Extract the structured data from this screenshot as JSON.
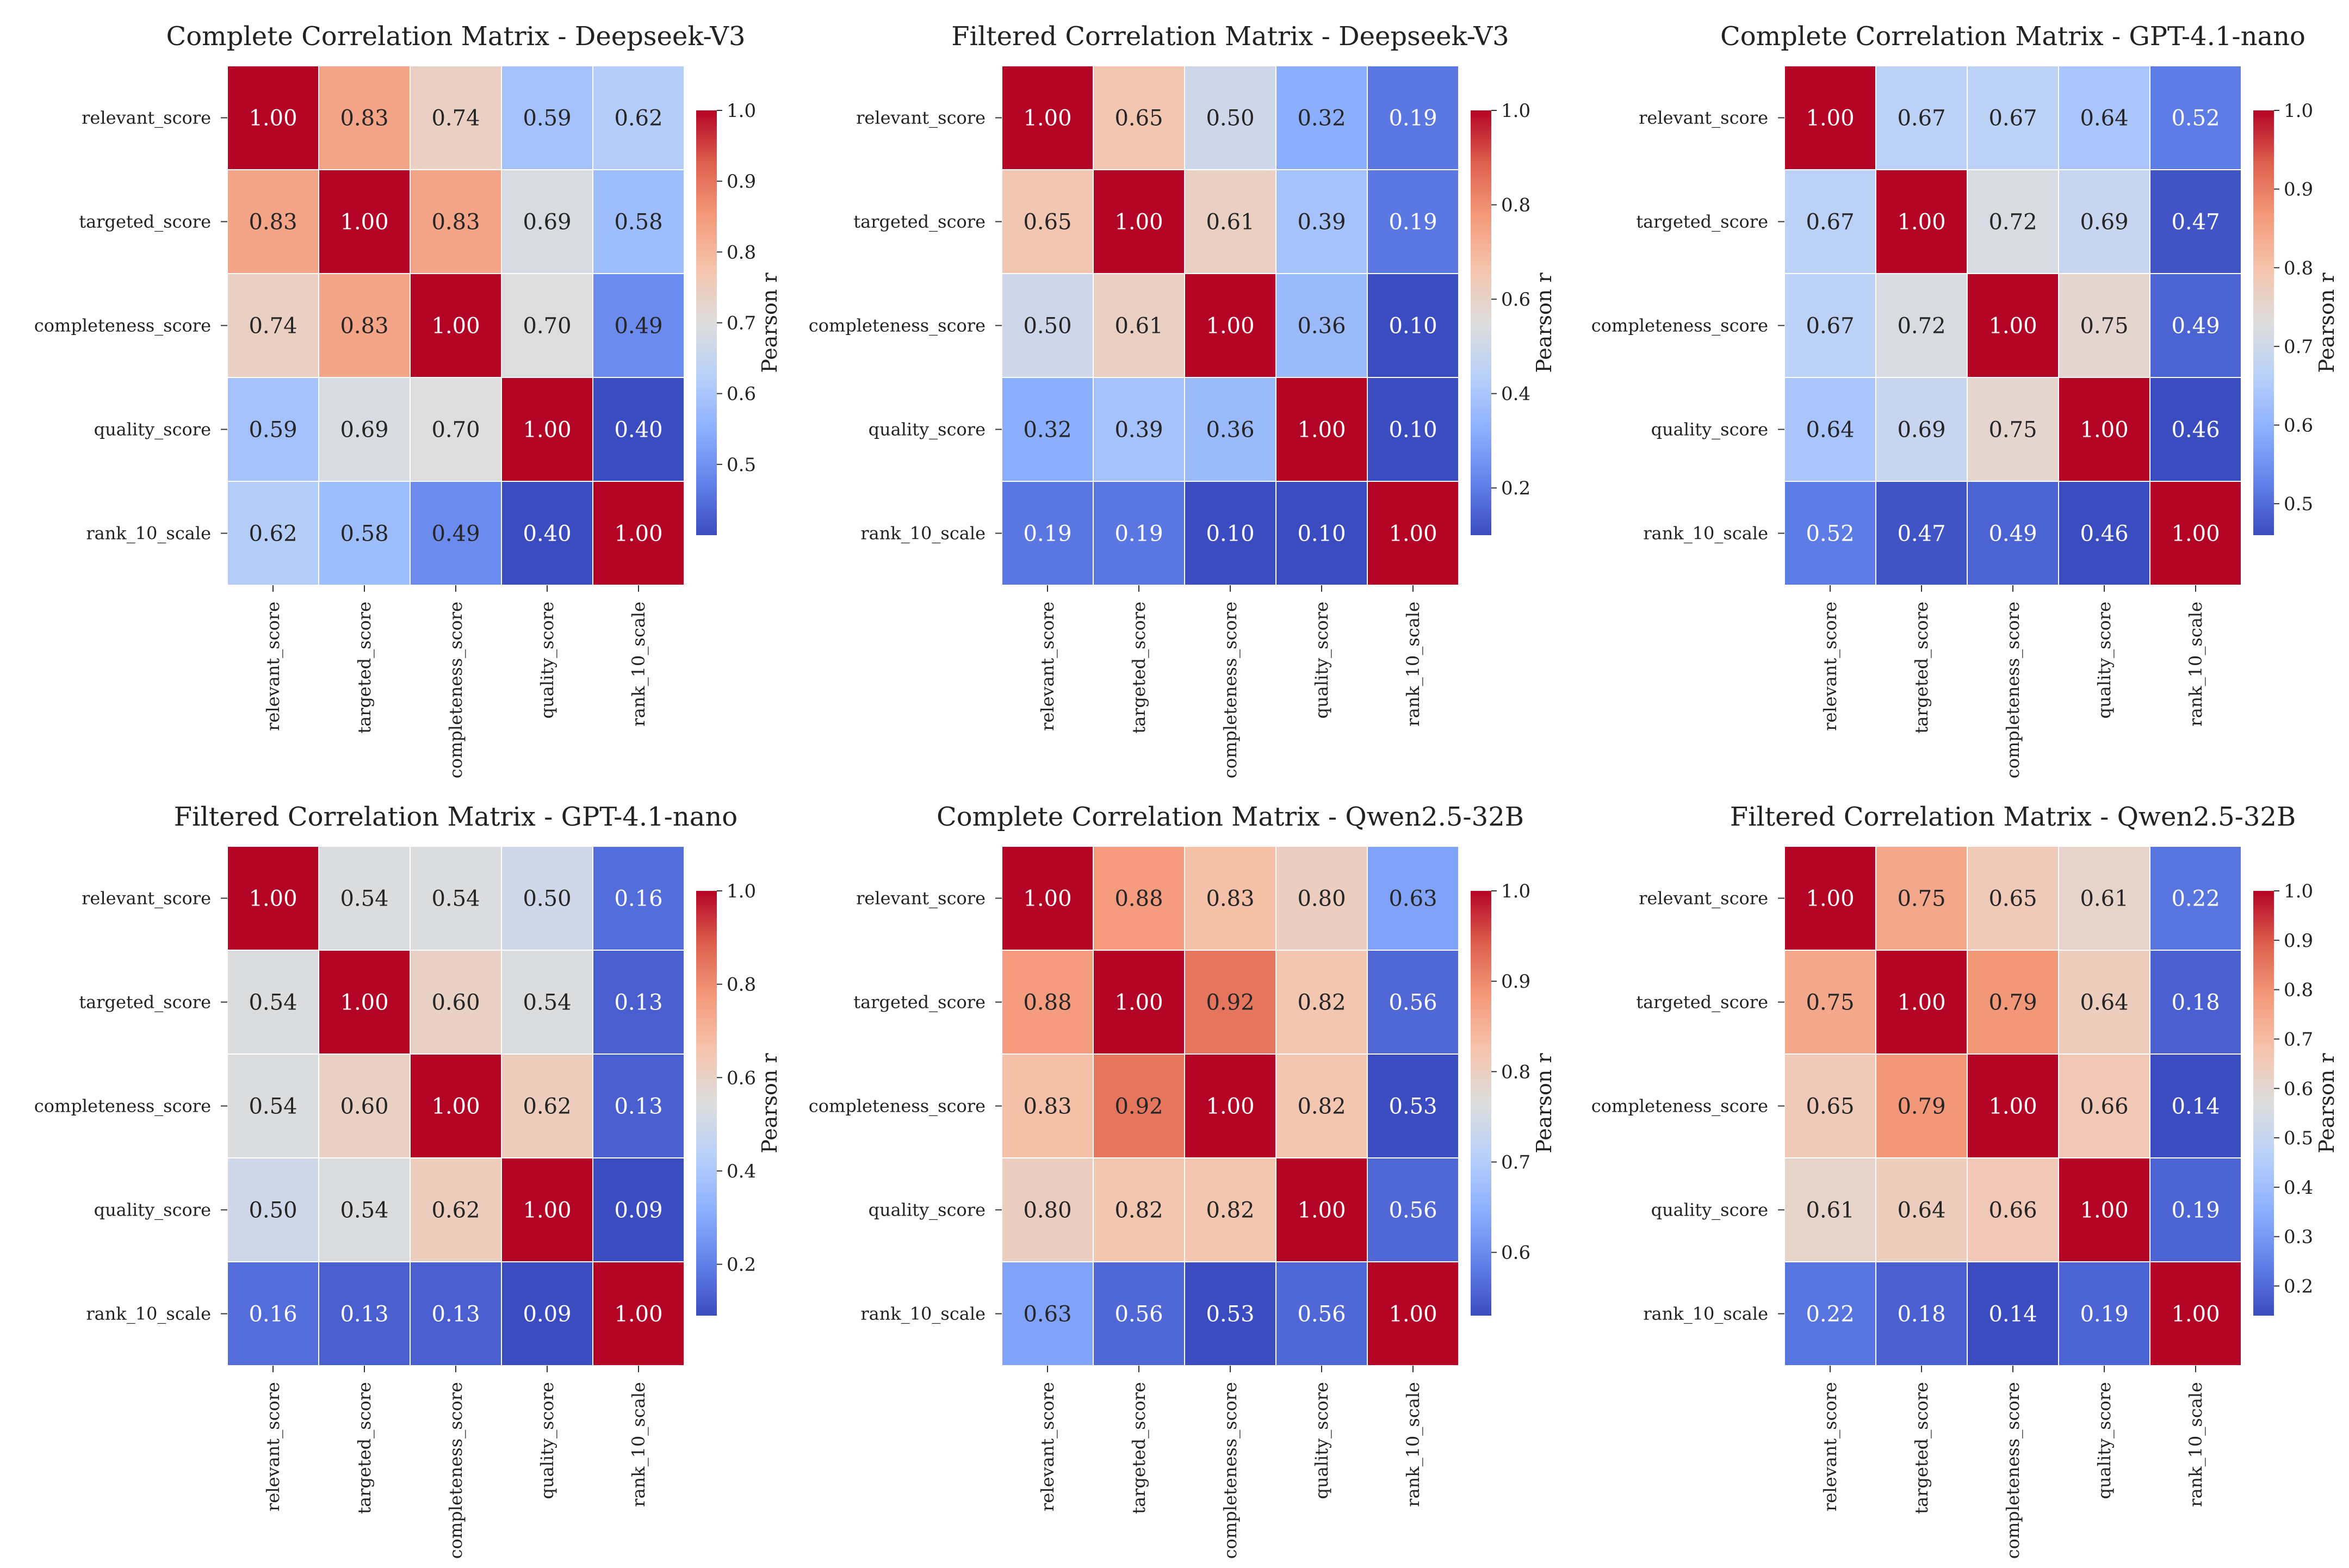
{
  "figure": {
    "variables": [
      "relevant_score",
      "targeted_score",
      "completeness_score",
      "quality_score",
      "rank_10_scale"
    ],
    "colormap": "coolwarm",
    "colorbar_label": "Pearson r"
  },
  "chart_data": [
    {
      "type": "heatmap",
      "title": "Complete Correlation Matrix - Deepseek-V3",
      "rows": [
        "relevant_score",
        "targeted_score",
        "completeness_score",
        "quality_score",
        "rank_10_scale"
      ],
      "cols": [
        "relevant_score",
        "targeted_score",
        "completeness_score",
        "quality_score",
        "rank_10_scale"
      ],
      "values": [
        [
          1.0,
          0.83,
          0.74,
          0.59,
          0.62
        ],
        [
          0.83,
          1.0,
          0.83,
          0.69,
          0.58
        ],
        [
          0.74,
          0.83,
          1.0,
          0.7,
          0.49
        ],
        [
          0.59,
          0.69,
          0.7,
          1.0,
          0.4
        ],
        [
          0.62,
          0.58,
          0.49,
          0.4,
          1.0
        ]
      ],
      "colorbar": {
        "label": "Pearson r",
        "min": 0.4,
        "max": 1.0,
        "ticks": [
          0.5,
          0.6,
          0.7,
          0.8,
          0.9,
          1.0
        ]
      }
    },
    {
      "type": "heatmap",
      "title": "Filtered Correlation Matrix - Deepseek-V3",
      "rows": [
        "relevant_score",
        "targeted_score",
        "completeness_score",
        "quality_score",
        "rank_10_scale"
      ],
      "cols": [
        "relevant_score",
        "targeted_score",
        "completeness_score",
        "quality_score",
        "rank_10_scale"
      ],
      "values": [
        [
          1.0,
          0.65,
          0.5,
          0.32,
          0.19
        ],
        [
          0.65,
          1.0,
          0.61,
          0.39,
          0.19
        ],
        [
          0.5,
          0.61,
          1.0,
          0.36,
          0.1
        ],
        [
          0.32,
          0.39,
          0.36,
          1.0,
          0.1
        ],
        [
          0.19,
          0.19,
          0.1,
          0.1,
          1.0
        ]
      ],
      "colorbar": {
        "label": "Pearson r",
        "min": 0.1,
        "max": 1.0,
        "ticks": [
          0.2,
          0.4,
          0.6,
          0.8,
          1.0
        ]
      }
    },
    {
      "type": "heatmap",
      "title": "Complete Correlation Matrix - GPT-4.1-nano",
      "rows": [
        "relevant_score",
        "targeted_score",
        "completeness_score",
        "quality_score",
        "rank_10_scale"
      ],
      "cols": [
        "relevant_score",
        "targeted_score",
        "completeness_score",
        "quality_score",
        "rank_10_scale"
      ],
      "values": [
        [
          1.0,
          0.67,
          0.67,
          0.64,
          0.52
        ],
        [
          0.67,
          1.0,
          0.72,
          0.69,
          0.47
        ],
        [
          0.67,
          0.72,
          1.0,
          0.75,
          0.49
        ],
        [
          0.64,
          0.69,
          0.75,
          1.0,
          0.46
        ],
        [
          0.52,
          0.47,
          0.49,
          0.46,
          1.0
        ]
      ],
      "colorbar": {
        "label": "Pearson r",
        "min": 0.46,
        "max": 1.0,
        "ticks": [
          0.5,
          0.6,
          0.7,
          0.8,
          0.9,
          1.0
        ]
      }
    },
    {
      "type": "heatmap",
      "title": "Filtered Correlation Matrix - GPT-4.1-nano",
      "rows": [
        "relevant_score",
        "targeted_score",
        "completeness_score",
        "quality_score",
        "rank_10_scale"
      ],
      "cols": [
        "relevant_score",
        "targeted_score",
        "completeness_score",
        "quality_score",
        "rank_10_scale"
      ],
      "values": [
        [
          1.0,
          0.54,
          0.54,
          0.5,
          0.16
        ],
        [
          0.54,
          1.0,
          0.6,
          0.54,
          0.13
        ],
        [
          0.54,
          0.6,
          1.0,
          0.62,
          0.13
        ],
        [
          0.5,
          0.54,
          0.62,
          1.0,
          0.09
        ],
        [
          0.16,
          0.13,
          0.13,
          0.09,
          1.0
        ]
      ],
      "colorbar": {
        "label": "Pearson r",
        "min": 0.09,
        "max": 1.0,
        "ticks": [
          0.2,
          0.4,
          0.6,
          0.8,
          1.0
        ]
      }
    },
    {
      "type": "heatmap",
      "title": "Complete Correlation Matrix - Qwen2.5-32B",
      "rows": [
        "relevant_score",
        "targeted_score",
        "completeness_score",
        "quality_score",
        "rank_10_scale"
      ],
      "cols": [
        "relevant_score",
        "targeted_score",
        "completeness_score",
        "quality_score",
        "rank_10_scale"
      ],
      "values": [
        [
          1.0,
          0.88,
          0.83,
          0.8,
          0.63
        ],
        [
          0.88,
          1.0,
          0.92,
          0.82,
          0.56
        ],
        [
          0.83,
          0.92,
          1.0,
          0.82,
          0.53
        ],
        [
          0.8,
          0.82,
          0.82,
          1.0,
          0.56
        ],
        [
          0.63,
          0.56,
          0.53,
          0.56,
          1.0
        ]
      ],
      "colorbar": {
        "label": "Pearson r",
        "min": 0.53,
        "max": 1.0,
        "ticks": [
          0.6,
          0.7,
          0.8,
          0.9,
          1.0
        ]
      }
    },
    {
      "type": "heatmap",
      "title": "Filtered Correlation Matrix - Qwen2.5-32B",
      "rows": [
        "relevant_score",
        "targeted_score",
        "completeness_score",
        "quality_score",
        "rank_10_scale"
      ],
      "cols": [
        "relevant_score",
        "targeted_score",
        "completeness_score",
        "quality_score",
        "rank_10_scale"
      ],
      "values": [
        [
          1.0,
          0.75,
          0.65,
          0.61,
          0.22
        ],
        [
          0.75,
          1.0,
          0.79,
          0.64,
          0.18
        ],
        [
          0.65,
          0.79,
          1.0,
          0.66,
          0.14
        ],
        [
          0.61,
          0.64,
          0.66,
          1.0,
          0.19
        ],
        [
          0.22,
          0.18,
          0.14,
          0.19,
          1.0
        ]
      ],
      "colorbar": {
        "label": "Pearson r",
        "min": 0.14,
        "max": 1.0,
        "ticks": [
          0.2,
          0.3,
          0.4,
          0.5,
          0.6,
          0.7,
          0.8,
          0.9,
          1.0
        ]
      }
    }
  ]
}
